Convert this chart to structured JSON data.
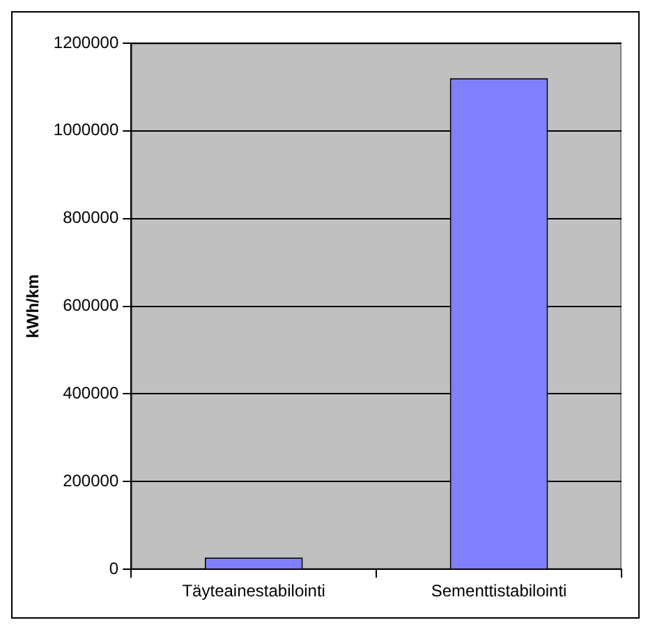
{
  "chart_data": {
    "type": "bar",
    "ylabel": "kWh/km",
    "categories": [
      "Täyteainestabilointi",
      "Sementtistabilointi"
    ],
    "values": [
      27000,
      1120000
    ],
    "color": "#8080ff",
    "ylim": [
      0,
      1200000
    ],
    "yticks": [
      0,
      200000,
      400000,
      600000,
      800000,
      1000000,
      1200000
    ],
    "grid": "y",
    "legend": false
  }
}
